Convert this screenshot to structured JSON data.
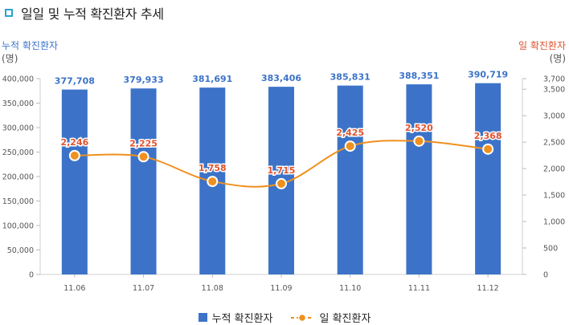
{
  "title": "일일 및 누적 확진환자 추세",
  "chart_data": {
    "type": "bar",
    "categories": [
      "11.06",
      "11.07",
      "11.08",
      "11.09",
      "11.10",
      "11.11",
      "11.12"
    ],
    "series": [
      {
        "name": "누적 확진환자",
        "type": "bar",
        "axis": "left",
        "values": [
          377708,
          379933,
          381691,
          383406,
          385831,
          388351,
          390719
        ],
        "labels": [
          "377,708",
          "379,933",
          "381,691",
          "383,406",
          "385,831",
          "388,351",
          "390,719"
        ],
        "color": "#3c73c8"
      },
      {
        "name": "일 확진환자",
        "type": "line",
        "axis": "right",
        "values": [
          2246,
          2225,
          1758,
          1715,
          2425,
          2520,
          2368
        ],
        "labels": [
          "2,246",
          "2,225",
          "1,758",
          "1,715",
          "2,425",
          "2,520",
          "2,368"
        ],
        "color": "#f0901e",
        "label_color": "#e0522e"
      }
    ],
    "y_left": {
      "title": "누적 확진환자",
      "unit": "(명)",
      "ylim": [
        0,
        400000
      ],
      "ticks": [
        0,
        50000,
        100000,
        150000,
        200000,
        250000,
        300000,
        350000,
        400000
      ],
      "tick_labels": [
        "0",
        "50,000",
        "100,000",
        "150,000",
        "200,000",
        "250,000",
        "300,000",
        "350,000",
        "400,000"
      ]
    },
    "y_right": {
      "title": "일 확진환자",
      "unit": "(명)",
      "ylim": [
        0,
        3700
      ],
      "ticks": [
        0,
        500,
        1000,
        1500,
        2000,
        2500,
        3000,
        3500,
        3700
      ],
      "tick_labels": [
        "0",
        "500",
        "1,000",
        "1,500",
        "2,000",
        "2,500",
        "3,000",
        "3,500",
        "3,700"
      ]
    },
    "grid": false,
    "legend": "bottom-center"
  }
}
